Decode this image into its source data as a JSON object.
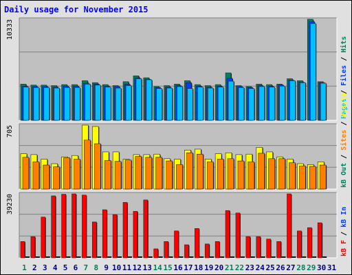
{
  "title": "Daily usage for November 2015",
  "chart_data": [
    {
      "type": "bar",
      "panel": "hits",
      "ymax_label": "10333",
      "ymax": 10333,
      "legend": [
        {
          "text": "Hits",
          "color": "#00805c"
        },
        {
          "text": "Files",
          "color": "#0040ff"
        },
        {
          "text": "Pages",
          "color": "#00c0ff"
        }
      ],
      "categories": [
        "1",
        "2",
        "3",
        "4",
        "5",
        "6",
        "7",
        "8",
        "9",
        "10",
        "11",
        "12",
        "13",
        "14",
        "15",
        "16",
        "17",
        "18",
        "19",
        "20",
        "21",
        "22",
        "23",
        "24",
        "25",
        "26",
        "27",
        "28",
        "29",
        "30",
        "31"
      ],
      "series": [
        {
          "name": "Hits",
          "color": "#008060",
          "values": [
            3700,
            3600,
            3600,
            3550,
            3650,
            3650,
            4050,
            3850,
            3650,
            3550,
            3950,
            4550,
            4350,
            3450,
            3550,
            3700,
            4050,
            3650,
            3550,
            3650,
            4850,
            3550,
            3450,
            3700,
            3650,
            3700,
            4250,
            4050,
            10333,
            3950,
            0
          ]
        },
        {
          "name": "Files",
          "color": "#0040ff",
          "values": [
            3500,
            3450,
            3450,
            3400,
            3500,
            3500,
            3800,
            3700,
            3500,
            3450,
            3700,
            4350,
            4200,
            3350,
            3400,
            3550,
            3850,
            3500,
            3400,
            3500,
            4300,
            3450,
            3350,
            3550,
            3500,
            3600,
            4100,
            3900,
            10100,
            3850,
            0
          ]
        },
        {
          "name": "Pages",
          "color": "#00c0ff",
          "values": [
            3400,
            3350,
            3350,
            3300,
            3350,
            3350,
            3700,
            3600,
            3400,
            3300,
            3550,
            4250,
            4150,
            3250,
            3300,
            3450,
            3250,
            3400,
            3300,
            3400,
            4000,
            3350,
            3250,
            3450,
            3400,
            3500,
            4050,
            3850,
            9900,
            3800,
            0
          ]
        }
      ]
    },
    {
      "type": "bar",
      "panel": "visits",
      "ymax_label": "705",
      "ymax": 705,
      "legend": [
        {
          "text": "Visits",
          "color": "#ffff00"
        },
        {
          "text": "Sites",
          "color": "#ff8000"
        },
        {
          "text": "kB Out",
          "color": "#00805c"
        }
      ],
      "categories": [
        "1",
        "2",
        "3",
        "4",
        "5",
        "6",
        "7",
        "8",
        "9",
        "10",
        "11",
        "12",
        "13",
        "14",
        "15",
        "16",
        "17",
        "18",
        "19",
        "20",
        "21",
        "22",
        "23",
        "24",
        "25",
        "26",
        "27",
        "28",
        "29",
        "30",
        "31"
      ],
      "series": [
        {
          "name": "Visits",
          "color": "#ffff00",
          "values": [
            390,
            380,
            330,
            280,
            355,
            370,
            705,
            690,
            410,
            410,
            330,
            380,
            380,
            385,
            335,
            330,
            430,
            440,
            330,
            390,
            400,
            380,
            385,
            460,
            410,
            355,
            330,
            280,
            270,
            300,
            0
          ]
        },
        {
          "name": "Sites",
          "color": "#ff8000",
          "values": [
            350,
            300,
            265,
            245,
            345,
            330,
            540,
            500,
            315,
            305,
            320,
            360,
            350,
            350,
            310,
            270,
            400,
            385,
            300,
            330,
            335,
            310,
            300,
            395,
            335,
            335,
            290,
            255,
            250,
            265,
            0
          ]
        }
      ]
    },
    {
      "type": "bar",
      "panel": "kbytes",
      "ymax_label": "39230",
      "ymax": 39230,
      "legend": [
        {
          "text": "kB In",
          "color": "#0040ff"
        },
        {
          "text": "kB F",
          "color": "#ff0000"
        }
      ],
      "categories": [
        "1",
        "2",
        "3",
        "4",
        "5",
        "6",
        "7",
        "8",
        "9",
        "10",
        "11",
        "12",
        "13",
        "14",
        "15",
        "16",
        "17",
        "18",
        "19",
        "20",
        "21",
        "22",
        "23",
        "24",
        "25",
        "26",
        "27",
        "28",
        "29",
        "30",
        "31"
      ],
      "series": [
        {
          "name": "kB F",
          "color": "#ff0000",
          "values": [
            10000,
            13000,
            25000,
            38000,
            39000,
            39230,
            38500,
            22000,
            29500,
            26500,
            34000,
            28500,
            35500,
            5500,
            10000,
            16500,
            8000,
            18000,
            8500,
            10000,
            29000,
            27500,
            13000,
            13000,
            11500,
            10000,
            39230,
            16500,
            18500,
            21500,
            0
          ]
        }
      ]
    }
  ],
  "x_labels": [
    {
      "text": "1",
      "color": "#008060"
    },
    {
      "text": "2",
      "color": "#000080"
    },
    {
      "text": "3",
      "color": "#000080"
    },
    {
      "text": "4",
      "color": "#000080"
    },
    {
      "text": "5",
      "color": "#000080"
    },
    {
      "text": "6",
      "color": "#000080"
    },
    {
      "text": "7",
      "color": "#008060"
    },
    {
      "text": "8",
      "color": "#008060"
    },
    {
      "text": "9",
      "color": "#000080"
    },
    {
      "text": "10",
      "color": "#000080"
    },
    {
      "text": "11",
      "color": "#000080"
    },
    {
      "text": "12",
      "color": "#000080"
    },
    {
      "text": "13",
      "color": "#000080"
    },
    {
      "text": "14",
      "color": "#008060"
    },
    {
      "text": "15",
      "color": "#008060"
    },
    {
      "text": "16",
      "color": "#000080"
    },
    {
      "text": "17",
      "color": "#000080"
    },
    {
      "text": "18",
      "color": "#000080"
    },
    {
      "text": "19",
      "color": "#000080"
    },
    {
      "text": "20",
      "color": "#000080"
    },
    {
      "text": "21",
      "color": "#008060"
    },
    {
      "text": "22",
      "color": "#008060"
    },
    {
      "text": "23",
      "color": "#000080"
    },
    {
      "text": "24",
      "color": "#000080"
    },
    {
      "text": "25",
      "color": "#000080"
    },
    {
      "text": "26",
      "color": "#000080"
    },
    {
      "text": "27",
      "color": "#000080"
    },
    {
      "text": "28",
      "color": "#008060"
    },
    {
      "text": "29",
      "color": "#008060"
    },
    {
      "text": "30",
      "color": "#000080"
    },
    {
      "text": "31",
      "color": "#000080"
    }
  ]
}
